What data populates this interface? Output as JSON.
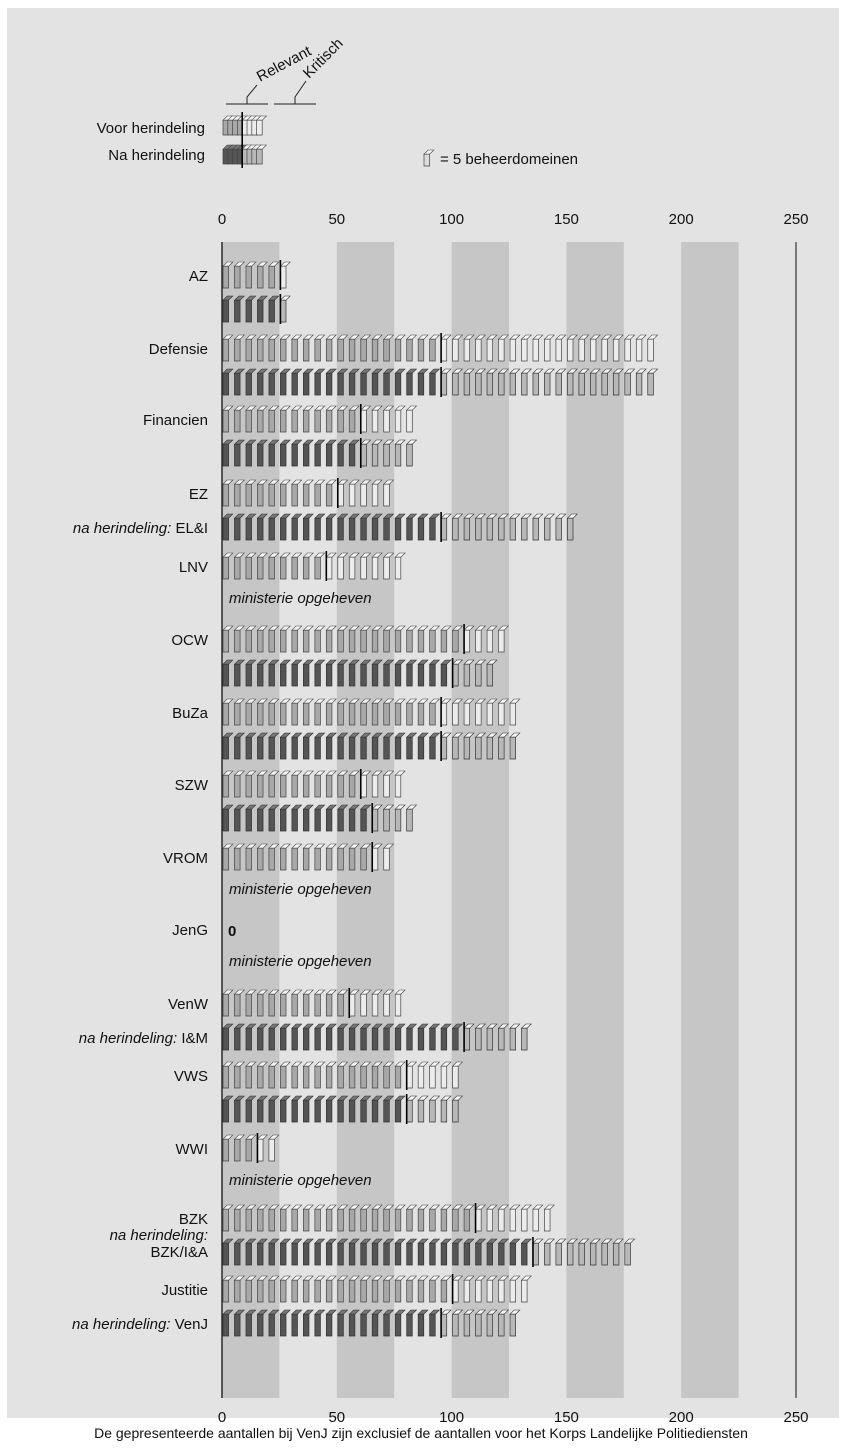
{
  "chart_data": {
    "type": "bar",
    "xlim": [
      0,
      250
    ],
    "ticks": [
      "0",
      "50",
      "100",
      "150",
      "200",
      "250"
    ],
    "legend": {
      "relevant_label": "Relevant",
      "kritisch_label": "Kritisch",
      "before_label": "Voor herindeling",
      "after_label": "Na herindeling",
      "unit_text": "= 5 beheerdomeinen",
      "before_relevant": 20,
      "before_total": 40,
      "after_relevant": 20,
      "after_total": 40
    },
    "series": [
      {
        "name": "Voor herindeling",
        "color": "#a8a8a8",
        "line_color": "#555555"
      },
      {
        "name": "Na herindeling",
        "color": "#555555",
        "line_color": "#333333"
      }
    ],
    "kritisch_colors": {
      "before": "#ececec",
      "after": "#b8b8b8"
    },
    "categories": [
      {
        "label": "AZ",
        "before": {
          "relevant": 25,
          "total": 30
        },
        "after": {
          "relevant": 25,
          "total": 30
        }
      },
      {
        "label": "Defensie",
        "before": {
          "relevant": 95,
          "total": 190
        },
        "after": {
          "relevant": 95,
          "total": 190
        }
      },
      {
        "label": "Financien",
        "before": {
          "relevant": 60,
          "total": 85
        },
        "after": {
          "relevant": 60,
          "total": 85
        }
      },
      {
        "label": "EZ",
        "after_prefix": "na herindeling:",
        "after_name": "EL&I",
        "before": {
          "relevant": 50,
          "total": 75
        },
        "after": {
          "relevant": 95,
          "total": 155
        }
      },
      {
        "label": "LNV",
        "note": "ministerie opgeheven",
        "before": {
          "relevant": 45,
          "total": 80
        },
        "after": null
      },
      {
        "label": "OCW",
        "before": {
          "relevant": 105,
          "total": 125
        },
        "after": {
          "relevant": 100,
          "total": 120
        }
      },
      {
        "label": "BuZa",
        "before": {
          "relevant": 95,
          "total": 130
        },
        "after": {
          "relevant": 95,
          "total": 130
        }
      },
      {
        "label": "SZW",
        "before": {
          "relevant": 60,
          "total": 80
        },
        "after": {
          "relevant": 65,
          "total": 85
        }
      },
      {
        "label": "VROM",
        "note": "ministerie opgeheven",
        "before": {
          "relevant": 65,
          "total": 75
        },
        "after": null
      },
      {
        "label": "JenG",
        "zero_text": "0",
        "note": "ministerie opgeheven",
        "before": {
          "relevant": 0,
          "total": 0
        },
        "after": null
      },
      {
        "label": "VenW",
        "after_prefix": "na herindeling:",
        "after_name": "I&M",
        "before": {
          "relevant": 55,
          "total": 80
        },
        "after": {
          "relevant": 105,
          "total": 135
        }
      },
      {
        "label": "VWS",
        "before": {
          "relevant": 80,
          "total": 105
        },
        "after": {
          "relevant": 80,
          "total": 105
        }
      },
      {
        "label": "WWI",
        "note": "ministerie opgeheven",
        "before": {
          "relevant": 15,
          "total": 25
        },
        "after": null
      },
      {
        "label": "BZK",
        "after_prefix": "na herindeling:",
        "after_name": "BZK/I&A",
        "before": {
          "relevant": 110,
          "total": 145
        },
        "after": {
          "relevant": 135,
          "total": 180
        }
      },
      {
        "label": "Justitie",
        "after_prefix": "na herindeling:",
        "after_name": "VenJ",
        "before": {
          "relevant": 100,
          "total": 135
        },
        "after": {
          "relevant": 95,
          "total": 130
        }
      }
    ],
    "footnote": "De gepresenteerde aantallen bij VenJ zijn exclusief de aantallen voor het Korps Landelijke Politiediensten"
  }
}
